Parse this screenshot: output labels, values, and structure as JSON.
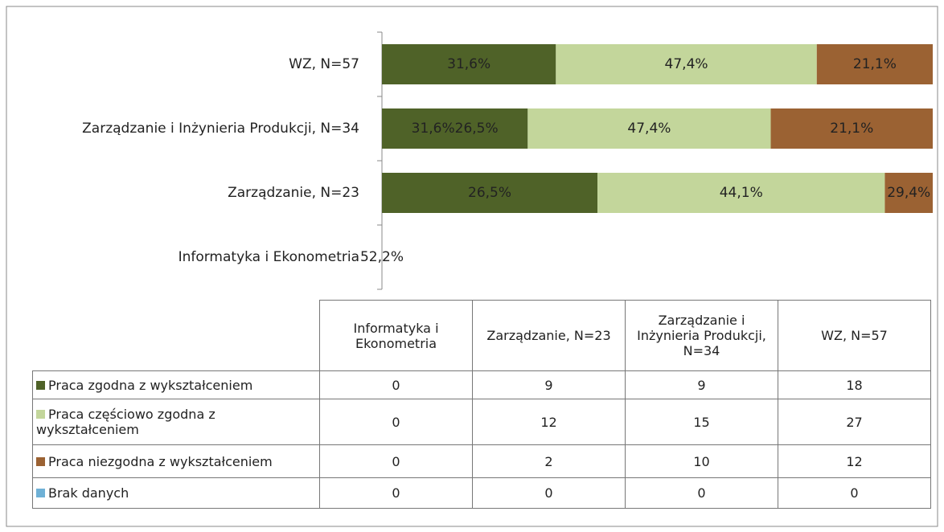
{
  "chart_data": {
    "type": "stacked_bar_100",
    "categories": [
      "Informatyka i Ekonometria",
      "Zarządzanie, N=23",
      "Zarządzanie i Inżynieria Produkcji, N=34",
      "WZ, N=57"
    ],
    "series": [
      {
        "name": "Praca zgodna z wykształceniem",
        "color": "#4f6228",
        "values": [
          0,
          9,
          9,
          18
        ]
      },
      {
        "name": "Praca częściowo zgodna z wykształceniem",
        "color": "#c3d69b",
        "values": [
          0,
          12,
          15,
          27
        ]
      },
      {
        "name": "Praca niezgodna z wykształceniem",
        "color": "#9b6233",
        "values": [
          0,
          2,
          10,
          12
        ]
      },
      {
        "name": "Brak danych",
        "color": "#6fb1d6",
        "values": [
          0,
          0,
          0,
          0
        ]
      }
    ],
    "segment_labels": [
      [
        "52,2%"
      ],
      [
        "26,5%",
        "44,1%",
        "29,4%"
      ],
      [
        "31,6%26,5%",
        "47,4%",
        "21,1%"
      ],
      [
        "31,6%",
        "47,4%",
        "21,1%"
      ]
    ]
  }
}
